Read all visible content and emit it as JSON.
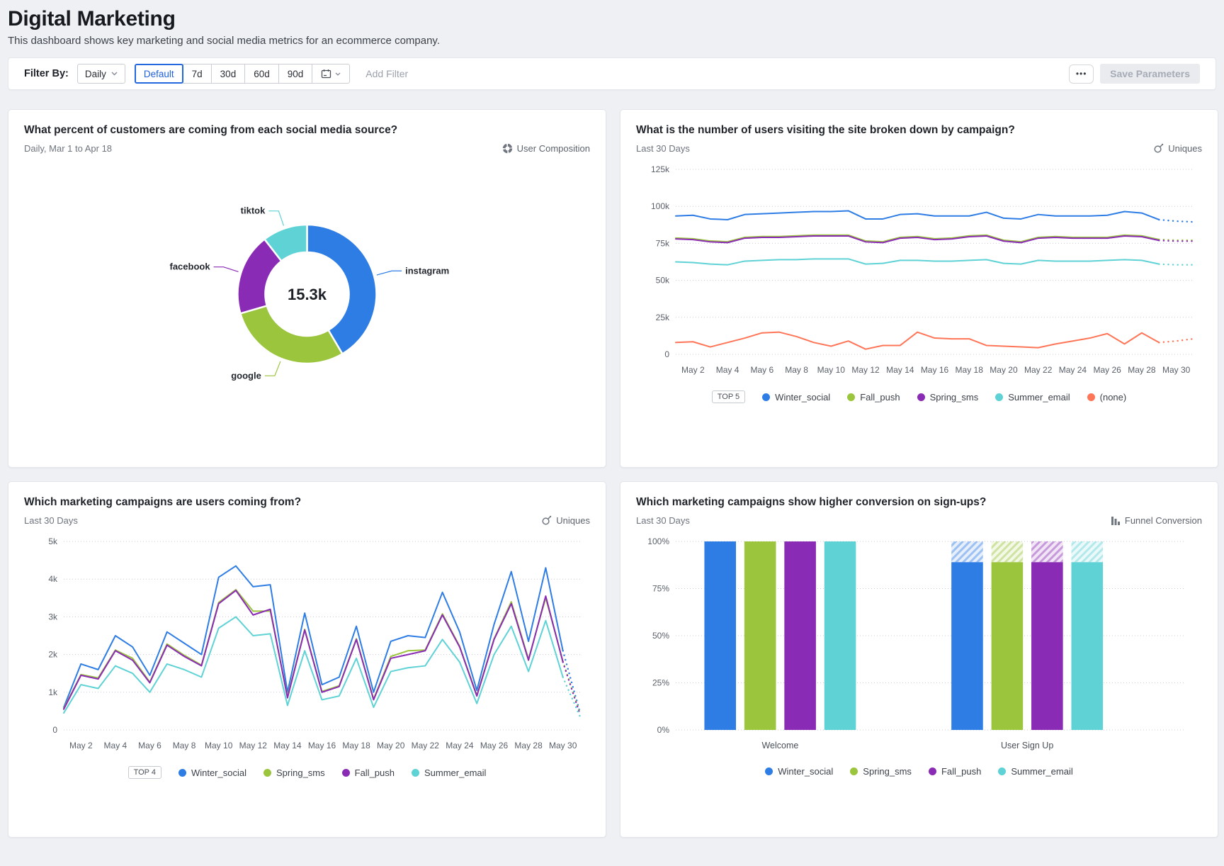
{
  "page": {
    "title": "Digital Marketing",
    "subtitle": "This dashboard shows key marketing and social media metrics for an ecommerce company."
  },
  "filter_bar": {
    "label": "Filter By:",
    "interval_dropdown": "Daily",
    "range_options": [
      "Default",
      "7d",
      "30d",
      "60d",
      "90d"
    ],
    "selected_range": "Default",
    "add_filter_label": "Add Filter",
    "more_button": "•••",
    "save_button": "Save Parameters"
  },
  "colors": {
    "accent": "#2468dd",
    "blue": "#2e7de5",
    "green": "#9bc53d",
    "purple": "#8a2bb5",
    "teal": "#5fd2d5",
    "orange": "#ff7558"
  },
  "chart_data": [
    {
      "type": "pie",
      "panel_title": "What percent of customers are coming from each social media source?",
      "subtitle": "Daily, Mar 1 to Apr 18",
      "metric_label": "User Composition",
      "center_total": "15.3k",
      "slices": [
        {
          "label": "instagram",
          "value": 41.5,
          "color": "#2e7de5"
        },
        {
          "label": "google",
          "value": 29,
          "color": "#9bc53d"
        },
        {
          "label": "facebook",
          "value": 19,
          "color": "#8a2bb5"
        },
        {
          "label": "tiktok",
          "value": 10.5,
          "color": "#5fd2d5"
        }
      ]
    },
    {
      "type": "line",
      "panel_title": "What is the number of users visiting the site broken down by campaign?",
      "subtitle": "Last 30 Days",
      "metric_label": "Uniques",
      "top_badge": "TOP 5",
      "ylim": [
        0,
        125
      ],
      "dashed_from": 28,
      "y_ticks": [
        [
          0,
          "0"
        ],
        [
          25,
          "25k"
        ],
        [
          50,
          "50k"
        ],
        [
          75,
          "75k"
        ],
        [
          100,
          "100k"
        ],
        [
          125,
          "125k"
        ]
      ],
      "x_ticks": [
        [
          1,
          "May 2"
        ],
        [
          3,
          "May 4"
        ],
        [
          5,
          "May 6"
        ],
        [
          7,
          "May 8"
        ],
        [
          9,
          "May 10"
        ],
        [
          11,
          "May 12"
        ],
        [
          13,
          "May 14"
        ],
        [
          15,
          "May 16"
        ],
        [
          17,
          "May 18"
        ],
        [
          19,
          "May 20"
        ],
        [
          21,
          "May 22"
        ],
        [
          23,
          "May 24"
        ],
        [
          25,
          "May 26"
        ],
        [
          27,
          "May 28"
        ],
        [
          29,
          "May 30"
        ]
      ],
      "series": [
        {
          "name": "Winter_social",
          "color": "#2e7de5",
          "values": [
            93.5,
            94,
            91.5,
            91,
            94.5,
            95,
            95.5,
            96,
            96.5,
            96.5,
            97,
            91.5,
            91.5,
            94.5,
            95,
            93.5,
            93.5,
            93.5,
            96,
            92,
            91.5,
            94.5,
            93.5,
            93.5,
            93.5,
            94,
            96.5,
            95.5,
            91,
            90,
            89.5
          ]
        },
        {
          "name": "Fall_push",
          "color": "#9bc53d",
          "values": [
            78.6,
            78.1,
            76.6,
            76.1,
            79.1,
            79.6,
            79.6,
            80.1,
            80.6,
            80.6,
            80.6,
            76.6,
            76.1,
            79.1,
            79.6,
            78.1,
            78.6,
            80.1,
            80.6,
            77.1,
            76.1,
            79.1,
            79.6,
            79.1,
            79.1,
            79.1,
            80.6,
            80.1,
            77.6,
            77.1,
            77.1
          ]
        },
        {
          "name": "Spring_sms",
          "color": "#8a2bb5",
          "values": [
            78,
            77.5,
            76,
            75.5,
            78.5,
            79,
            79,
            79.5,
            80,
            80,
            80,
            76,
            75.5,
            78.5,
            79,
            77.5,
            78,
            79.5,
            80,
            76.5,
            75.5,
            78.5,
            79,
            78.5,
            78.5,
            78.5,
            80,
            79.5,
            77,
            76.5,
            76.5
          ]
        },
        {
          "name": "Summer_email",
          "color": "#5fd2d5",
          "values": [
            62.5,
            62,
            61,
            60.5,
            63,
            63.5,
            64,
            64,
            64.5,
            64.5,
            64.5,
            61,
            61.5,
            63.5,
            63.5,
            63,
            63,
            63.5,
            64,
            61.5,
            61,
            63.5,
            63,
            63,
            63,
            63.5,
            64,
            63.5,
            61,
            60.5,
            60.5
          ]
        },
        {
          "name": "(none)",
          "color": "#ff7558",
          "values": [
            8,
            8.5,
            5,
            8,
            11,
            14.5,
            15,
            12,
            8,
            5.5,
            9,
            3.5,
            6,
            6,
            15,
            11,
            10.5,
            10.5,
            6,
            5.5,
            5,
            4.5,
            7,
            9,
            11,
            14,
            7,
            14.5,
            8,
            9,
            10.5
          ]
        }
      ]
    },
    {
      "type": "line",
      "panel_title": "Which marketing campaigns are users coming from?",
      "subtitle": "Last 30 Days",
      "metric_label": "Uniques",
      "top_badge": "TOP 4",
      "ylim": [
        0,
        5
      ],
      "dashed_from": 29,
      "y_ticks": [
        [
          0,
          "0"
        ],
        [
          1,
          "1k"
        ],
        [
          2,
          "2k"
        ],
        [
          3,
          "3k"
        ],
        [
          4,
          "4k"
        ],
        [
          5,
          "5k"
        ]
      ],
      "x_ticks": [
        [
          1,
          "May 2"
        ],
        [
          3,
          "May 4"
        ],
        [
          5,
          "May 6"
        ],
        [
          7,
          "May 8"
        ],
        [
          9,
          "May 10"
        ],
        [
          11,
          "May 12"
        ],
        [
          13,
          "May 14"
        ],
        [
          15,
          "May 16"
        ],
        [
          17,
          "May 18"
        ],
        [
          19,
          "May 20"
        ],
        [
          21,
          "May 22"
        ],
        [
          23,
          "May 24"
        ],
        [
          25,
          "May 26"
        ],
        [
          27,
          "May 28"
        ],
        [
          29,
          "May 30"
        ]
      ],
      "series": [
        {
          "name": "Winter_social",
          "color": "#2e7de5",
          "values": [
            0.6,
            1.75,
            1.6,
            2.5,
            2.2,
            1.45,
            2.6,
            2.3,
            2.0,
            4.05,
            4.35,
            3.8,
            3.85,
            1.0,
            3.1,
            1.2,
            1.4,
            2.75,
            1.0,
            2.35,
            2.5,
            2.45,
            3.65,
            2.6,
            1.05,
            2.8,
            4.2,
            2.35,
            4.3,
            2.1,
            0.45
          ]
        },
        {
          "name": "Spring_sms",
          "color": "#9bc53d",
          "values": [
            0.57,
            1.47,
            1.38,
            2.12,
            1.9,
            1.27,
            2.28,
            1.98,
            1.72,
            3.38,
            3.72,
            3.15,
            3.15,
            0.88,
            2.67,
            1.02,
            1.17,
            2.42,
            0.82,
            1.95,
            2.1,
            2.12,
            3.08,
            2.22,
            0.92,
            2.42,
            3.4,
            1.88,
            3.5,
            1.82,
            0.42
          ]
        },
        {
          "name": "Fall_push",
          "color": "#8a2bb5",
          "values": [
            0.55,
            1.45,
            1.35,
            2.1,
            1.85,
            1.25,
            2.25,
            1.95,
            1.7,
            3.35,
            3.7,
            3.05,
            3.2,
            0.85,
            2.65,
            1.0,
            1.15,
            2.4,
            0.8,
            1.9,
            2.0,
            2.1,
            3.05,
            2.2,
            0.9,
            2.4,
            3.35,
            1.85,
            3.55,
            1.8,
            0.4
          ]
        },
        {
          "name": "Summer_email",
          "color": "#5fd2d5",
          "values": [
            0.45,
            1.2,
            1.1,
            1.7,
            1.5,
            1.0,
            1.75,
            1.6,
            1.4,
            2.7,
            3.0,
            2.5,
            2.55,
            0.65,
            2.1,
            0.8,
            0.9,
            1.9,
            0.6,
            1.55,
            1.65,
            1.7,
            2.4,
            1.8,
            0.7,
            2.0,
            2.75,
            1.55,
            2.9,
            1.4,
            0.35
          ]
        }
      ]
    },
    {
      "type": "bar",
      "panel_title": "Which marketing campaigns show higher conversion on sign-ups?",
      "subtitle": "Last 30 Days",
      "metric_label": "Funnel Conversion",
      "steps": [
        "Welcome",
        "User Sign Up"
      ],
      "ylim": [
        0,
        100
      ],
      "y_ticks": [
        [
          0,
          "0%"
        ],
        [
          25,
          "25%"
        ],
        [
          50,
          "50%"
        ],
        [
          75,
          "75%"
        ],
        [
          100,
          "100%"
        ]
      ],
      "series": [
        {
          "name": "Winter_social",
          "color": "#2e7de5",
          "values": [
            100,
            89
          ]
        },
        {
          "name": "Spring_sms",
          "color": "#9bc53d",
          "values": [
            100,
            89
          ]
        },
        {
          "name": "Fall_push",
          "color": "#8a2bb5",
          "values": [
            100,
            89
          ]
        },
        {
          "name": "Summer_email",
          "color": "#5fd2d5",
          "values": [
            100,
            89
          ]
        }
      ]
    }
  ]
}
